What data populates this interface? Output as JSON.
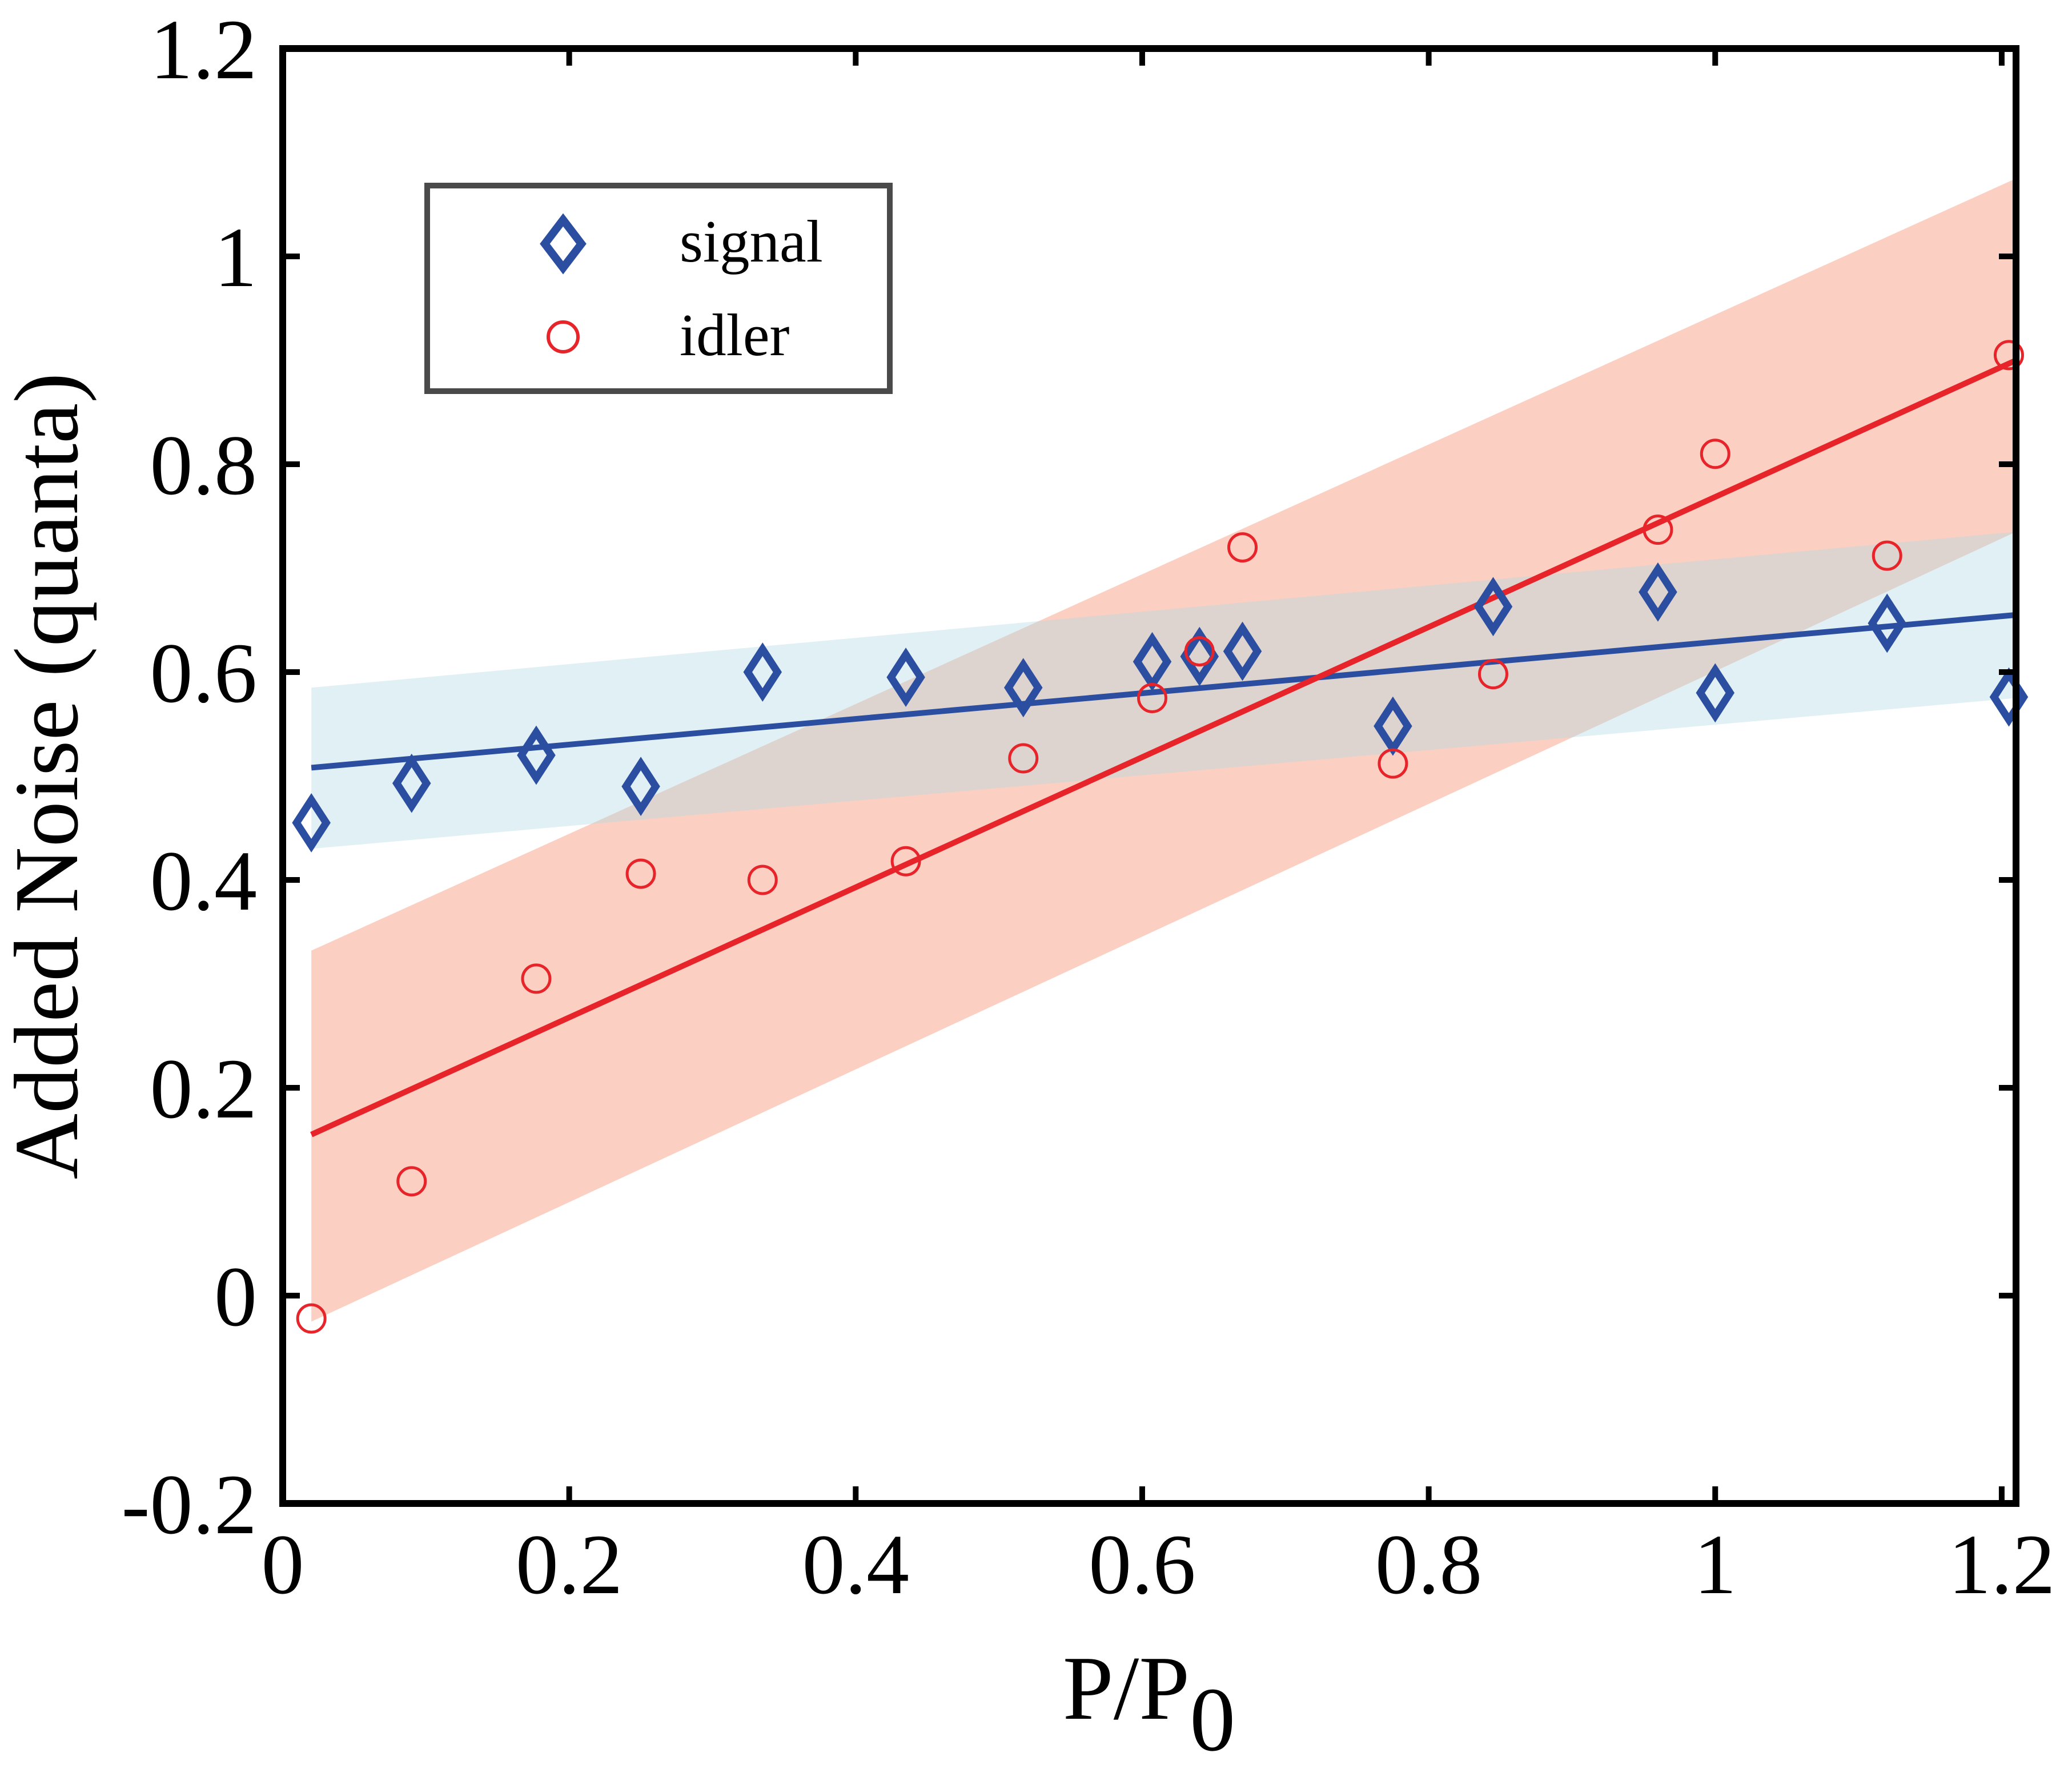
{
  "chart_data": {
    "type": "scatter",
    "title": "",
    "xlabel": "P/P",
    "xlabel_subscript": "0",
    "ylabel": "Added Noise (quanta)",
    "xlim": [
      0,
      1.21
    ],
    "ylim": [
      -0.2,
      1.2
    ],
    "xticks": [
      0,
      0.2,
      0.4,
      0.6,
      0.8,
      1,
      1.2
    ],
    "xtick_labels": [
      "0",
      "0.2",
      "0.4",
      "0.6",
      "0.8",
      "1",
      "1.2"
    ],
    "yticks": [
      -0.2,
      0,
      0.2,
      0.4,
      0.6,
      0.8,
      1,
      1.2
    ],
    "ytick_labels": [
      "-0.2",
      "0",
      "0.2",
      "0.4",
      "0.6",
      "0.8",
      "1",
      "1.2"
    ],
    "grid": false,
    "legend_position": "top-left",
    "series": [
      {
        "name": "signal",
        "marker": "diamond",
        "color": "#2b4ea1",
        "x": [
          0.02,
          0.09,
          0.177,
          0.25,
          0.335,
          0.435,
          0.517,
          0.607,
          0.64,
          0.67,
          0.775,
          0.845,
          0.96,
          1.0,
          1.12,
          1.205
        ],
        "y": [
          0.455,
          0.493,
          0.52,
          0.49,
          0.6,
          0.595,
          0.585,
          0.61,
          0.615,
          0.62,
          0.548,
          0.663,
          0.677,
          0.58,
          0.647,
          0.576
        ],
        "fit": {
          "x": [
            0.02,
            1.21
          ],
          "y": [
            0.508,
            0.655
          ]
        },
        "band": {
          "x": [
            0.02,
            1.21
          ],
          "lower": [
            0.43,
            0.575
          ],
          "upper": [
            0.585,
            0.735
          ],
          "color": "#add8e6"
        }
      },
      {
        "name": "idler",
        "marker": "circle",
        "color": "#e8242b",
        "x": [
          0.02,
          0.09,
          0.177,
          0.25,
          0.335,
          0.435,
          0.517,
          0.607,
          0.64,
          0.67,
          0.775,
          0.845,
          0.96,
          1.0,
          1.12,
          1.205
        ],
        "y": [
          -0.022,
          0.11,
          0.305,
          0.406,
          0.4,
          0.418,
          0.517,
          0.575,
          0.62,
          0.72,
          0.512,
          0.598,
          0.737,
          0.81,
          0.712,
          0.905
        ],
        "fit": {
          "x": [
            0.02,
            1.21
          ],
          "y": [
            0.155,
            0.9
          ]
        },
        "band": {
          "x": [
            0.02,
            1.21
          ],
          "lower": [
            -0.025,
            0.735
          ],
          "upper": [
            0.332,
            1.075
          ],
          "color": "#f7a98f"
        }
      }
    ]
  }
}
